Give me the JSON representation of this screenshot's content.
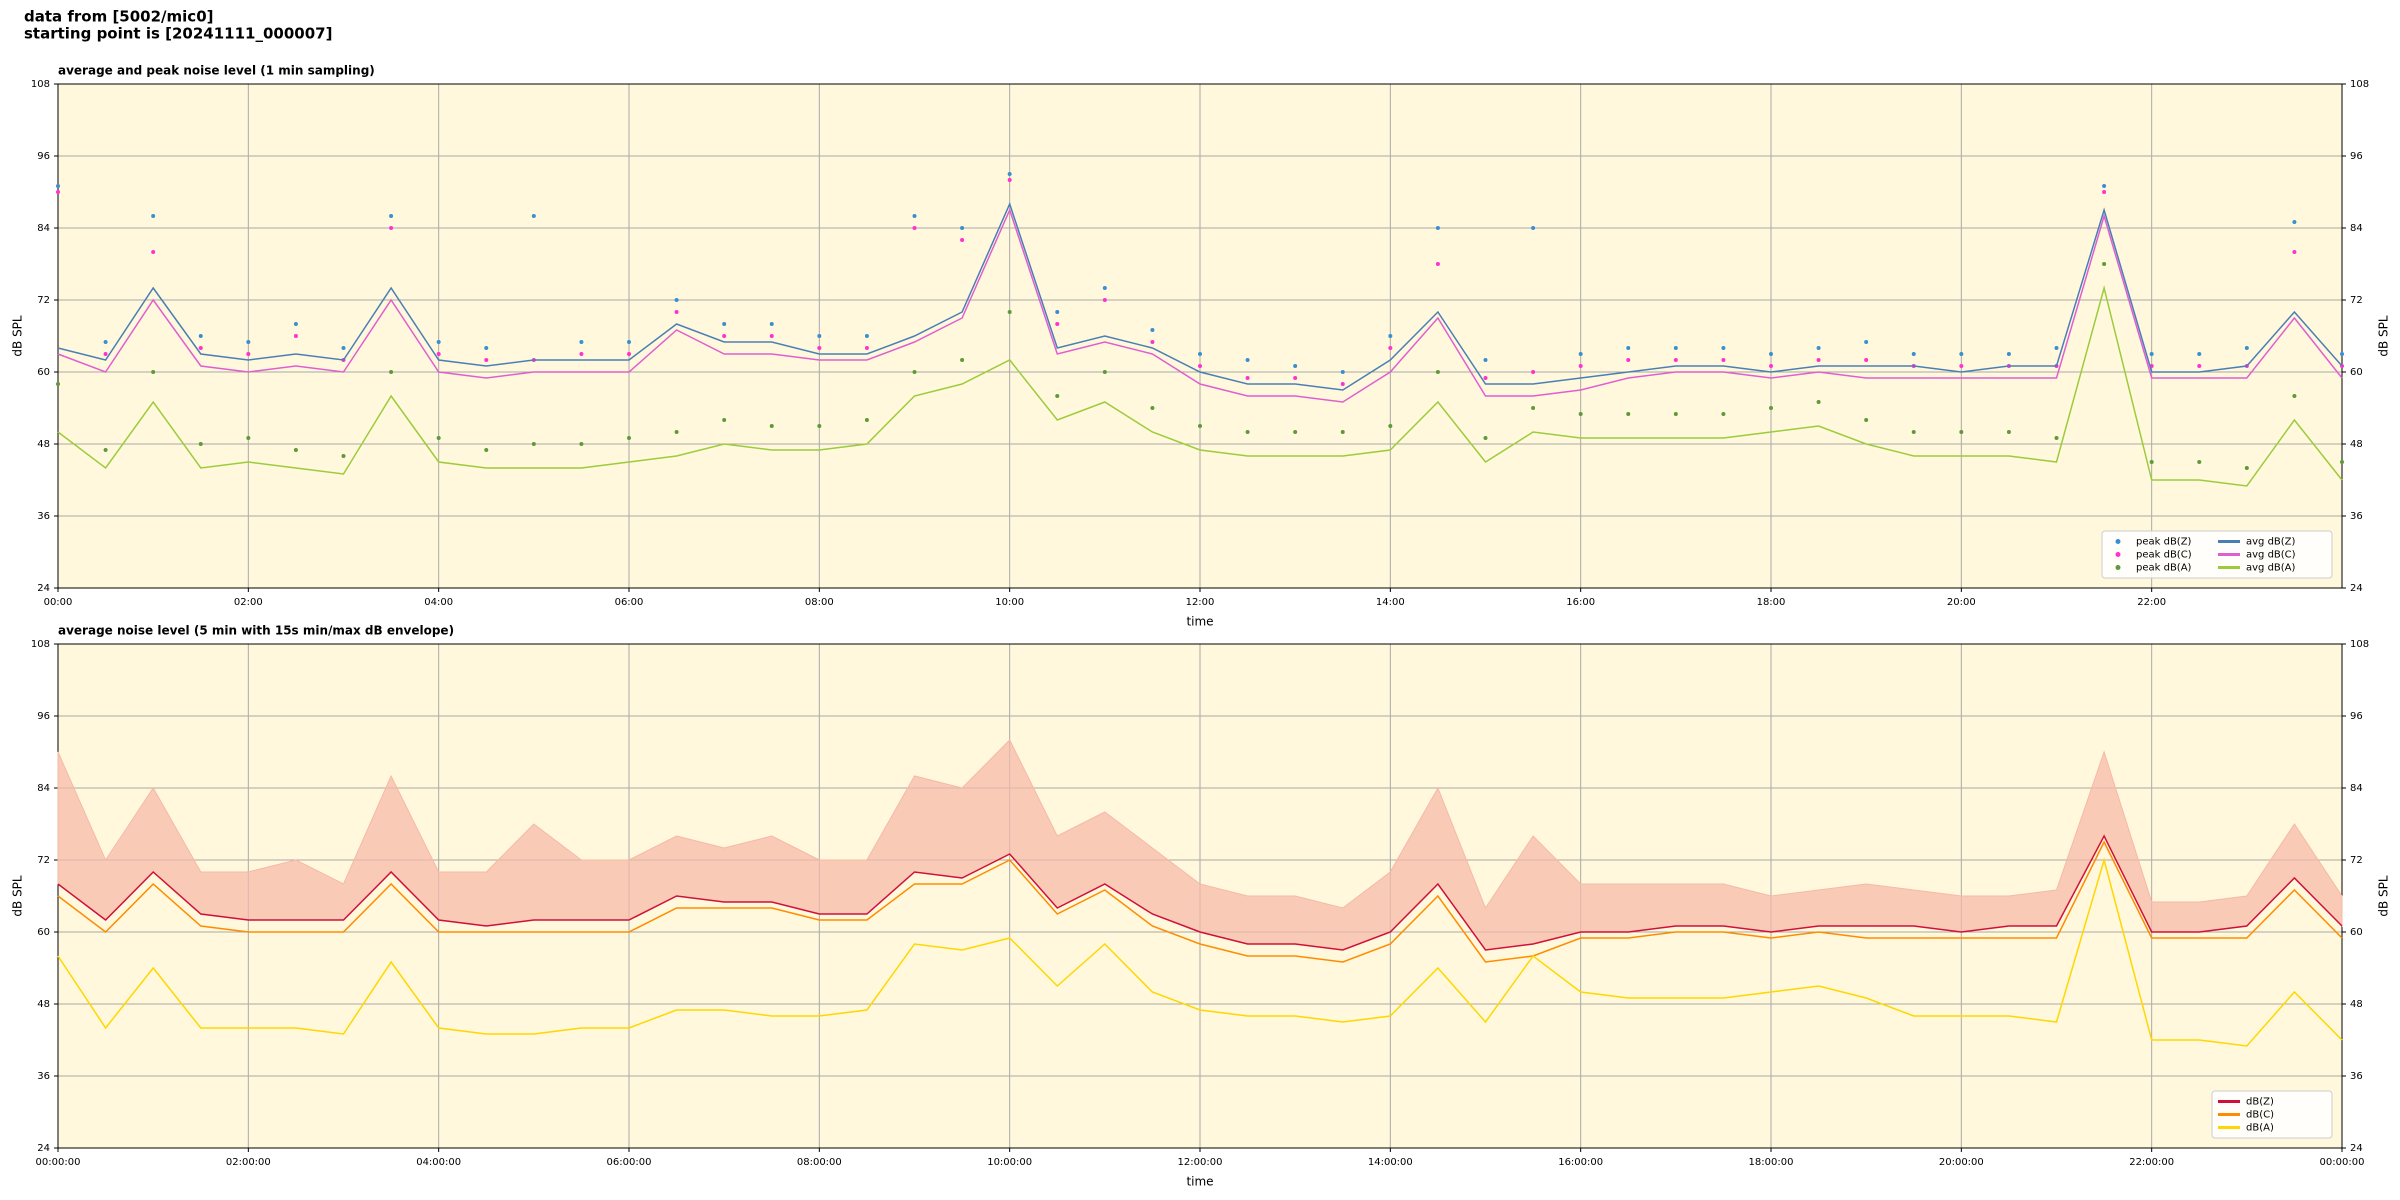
{
  "header": {
    "line1": "data from [5002/mic0]",
    "line2": "starting point is [20241111_000007]"
  },
  "chart_data": [
    {
      "type": "line",
      "title": "average and peak noise level (1 min sampling)",
      "xlabel": "time",
      "ylabel": "dB SPL",
      "x": [
        0,
        0.5,
        1,
        1.5,
        2,
        2.5,
        3,
        3.5,
        4,
        4.5,
        5,
        5.5,
        6,
        6.5,
        7,
        7.5,
        8,
        8.5,
        9,
        9.5,
        10,
        10.5,
        11,
        11.5,
        12,
        12.5,
        13,
        13.5,
        14,
        14.5,
        15,
        15.5,
        16,
        16.5,
        17,
        17.5,
        18,
        18.5,
        19,
        19.5,
        20,
        20.5,
        21,
        21.5,
        22,
        22.5,
        23,
        23.5,
        24
      ],
      "xlim": [
        0,
        24
      ],
      "ylim": [
        24,
        108
      ],
      "yticks": [
        24,
        36,
        48,
        60,
        72,
        84,
        96,
        108
      ],
      "xticks": [
        {
          "value": 0,
          "label": "00:00"
        },
        {
          "value": 2,
          "label": "02:00"
        },
        {
          "value": 4,
          "label": "04:00"
        },
        {
          "value": 6,
          "label": "06:00"
        },
        {
          "value": 8,
          "label": "08:00"
        },
        {
          "value": 10,
          "label": "10:00"
        },
        {
          "value": 12,
          "label": "12:00"
        },
        {
          "value": 14,
          "label": "14:00"
        },
        {
          "value": 16,
          "label": "16:00"
        },
        {
          "value": 18,
          "label": "18:00"
        },
        {
          "value": 20,
          "label": "20:00"
        },
        {
          "value": 22,
          "label": "22:00"
        }
      ],
      "grid": true,
      "legend": "lower right",
      "legend_columns": 2,
      "series": [
        {
          "name": "peak dB(Z)",
          "type": "scatter",
          "color": "#3a8fd0",
          "values": [
            91,
            65,
            86,
            66,
            65,
            68,
            64,
            86,
            65,
            64,
            86,
            65,
            65,
            72,
            68,
            68,
            66,
            66,
            86,
            84,
            93,
            70,
            74,
            67,
            63,
            62,
            61,
            60,
            66,
            84,
            62,
            84,
            63,
            64,
            64,
            64,
            63,
            64,
            65,
            63,
            63,
            63,
            64,
            91,
            63,
            63,
            64,
            85,
            63
          ]
        },
        {
          "name": "peak dB(C)",
          "type": "scatter",
          "color": "#ff33cc",
          "values": [
            90,
            63,
            80,
            64,
            63,
            66,
            62,
            84,
            63,
            62,
            62,
            63,
            63,
            70,
            66,
            66,
            64,
            64,
            84,
            82,
            92,
            68,
            72,
            65,
            61,
            59,
            59,
            58,
            64,
            78,
            59,
            60,
            61,
            62,
            62,
            62,
            61,
            62,
            62,
            61,
            61,
            61,
            61,
            90,
            61,
            61,
            61,
            80,
            61
          ]
        },
        {
          "name": "peak dB(A)",
          "type": "scatter",
          "color": "#5e9a3a",
          "values": [
            58,
            47,
            60,
            48,
            49,
            47,
            46,
            60,
            49,
            47,
            48,
            48,
            49,
            50,
            52,
            51,
            51,
            52,
            60,
            62,
            70,
            56,
            60,
            54,
            51,
            50,
            50,
            50,
            51,
            60,
            49,
            54,
            53,
            53,
            53,
            53,
            54,
            55,
            52,
            50,
            50,
            50,
            49,
            78,
            45,
            45,
            44,
            56,
            45
          ]
        },
        {
          "name": "avg dB(Z)",
          "type": "line",
          "color": "#4a7fb5",
          "values": [
            64,
            62,
            74,
            63,
            62,
            63,
            62,
            74,
            62,
            61,
            62,
            62,
            62,
            68,
            65,
            65,
            63,
            63,
            66,
            70,
            88,
            64,
            66,
            64,
            60,
            58,
            58,
            57,
            62,
            70,
            58,
            58,
            59,
            60,
            61,
            61,
            60,
            61,
            61,
            61,
            60,
            61,
            61,
            87,
            60,
            60,
            61,
            70,
            61
          ]
        },
        {
          "name": "avg dB(C)",
          "type": "line",
          "color": "#e05fd0",
          "values": [
            63,
            60,
            72,
            61,
            60,
            61,
            60,
            72,
            60,
            59,
            60,
            60,
            60,
            67,
            63,
            63,
            62,
            62,
            65,
            69,
            87,
            63,
            65,
            63,
            58,
            56,
            56,
            55,
            60,
            69,
            56,
            56,
            57,
            59,
            60,
            60,
            59,
            60,
            59,
            59,
            59,
            59,
            59,
            86,
            59,
            59,
            59,
            69,
            59
          ]
        },
        {
          "name": "avg dB(A)",
          "type": "line",
          "color": "#9ccc3c",
          "values": [
            50,
            44,
            55,
            44,
            45,
            44,
            43,
            56,
            45,
            44,
            44,
            44,
            45,
            46,
            48,
            47,
            47,
            48,
            56,
            58,
            62,
            52,
            55,
            50,
            47,
            46,
            46,
            46,
            47,
            55,
            45,
            50,
            49,
            49,
            49,
            49,
            50,
            51,
            48,
            46,
            46,
            46,
            45,
            74,
            42,
            42,
            41,
            52,
            42
          ]
        }
      ]
    },
    {
      "type": "line",
      "title": "average noise level (5 min with 15s min/max dB envelope)",
      "xlabel": "time",
      "ylabel": "dB SPL",
      "x": [
        0,
        0.5,
        1,
        1.5,
        2,
        2.5,
        3,
        3.5,
        4,
        4.5,
        5,
        5.5,
        6,
        6.5,
        7,
        7.5,
        8,
        8.5,
        9,
        9.5,
        10,
        10.5,
        11,
        11.5,
        12,
        12.5,
        13,
        13.5,
        14,
        14.5,
        15,
        15.5,
        16,
        16.5,
        17,
        17.5,
        18,
        18.5,
        19,
        19.5,
        20,
        20.5,
        21,
        21.5,
        22,
        22.5,
        23,
        23.5,
        24
      ],
      "xlim": [
        0,
        24
      ],
      "ylim": [
        24,
        108
      ],
      "yticks": [
        24,
        36,
        48,
        60,
        72,
        84,
        96,
        108
      ],
      "xticks": [
        {
          "value": 0,
          "label": "00:00:00"
        },
        {
          "value": 2,
          "label": "02:00:00"
        },
        {
          "value": 4,
          "label": "04:00:00"
        },
        {
          "value": 6,
          "label": "06:00:00"
        },
        {
          "value": 8,
          "label": "08:00:00"
        },
        {
          "value": 10,
          "label": "10:00:00"
        },
        {
          "value": 12,
          "label": "12:00:00"
        },
        {
          "value": 14,
          "label": "14:00:00"
        },
        {
          "value": 16,
          "label": "16:00:00"
        },
        {
          "value": 18,
          "label": "18:00:00"
        },
        {
          "value": 20,
          "label": "20:00:00"
        },
        {
          "value": 22,
          "label": "22:00:00"
        },
        {
          "value": 24,
          "label": "00:00:00"
        }
      ],
      "grid": true,
      "legend": "lower right",
      "legend_columns": 1,
      "series": [
        {
          "type": "envelope",
          "color": "#f6b8a6",
          "values": [
            90,
            72,
            84,
            70,
            70,
            72,
            68,
            86,
            70,
            70,
            78,
            72,
            72,
            76,
            74,
            76,
            72,
            72,
            86,
            84,
            92,
            76,
            80,
            74,
            68,
            66,
            66,
            64,
            70,
            84,
            64,
            76,
            68,
            68,
            68,
            68,
            66,
            67,
            68,
            67,
            66,
            66,
            67,
            90,
            65,
            65,
            66,
            78,
            66
          ]
        },
        {
          "name": "dB(Z)",
          "type": "line",
          "color": "#d0103a",
          "values": [
            68,
            62,
            70,
            63,
            62,
            62,
            62,
            70,
            62,
            61,
            62,
            62,
            62,
            66,
            65,
            65,
            63,
            63,
            70,
            69,
            73,
            64,
            68,
            63,
            60,
            58,
            58,
            57,
            60,
            68,
            57,
            58,
            60,
            60,
            61,
            61,
            60,
            61,
            61,
            61,
            60,
            61,
            61,
            76,
            60,
            60,
            61,
            69,
            61
          ]
        },
        {
          "name": "dB(C)",
          "type": "line",
          "color": "#ff8c00",
          "values": [
            66,
            60,
            68,
            61,
            60,
            60,
            60,
            68,
            60,
            60,
            60,
            60,
            60,
            64,
            64,
            64,
            62,
            62,
            68,
            68,
            72,
            63,
            67,
            61,
            58,
            56,
            56,
            55,
            58,
            66,
            55,
            56,
            59,
            59,
            60,
            60,
            59,
            60,
            59,
            59,
            59,
            59,
            59,
            75,
            59,
            59,
            59,
            67,
            59
          ]
        },
        {
          "name": "dB(A)",
          "type": "line",
          "color": "#ffd700",
          "values": [
            56,
            44,
            54,
            44,
            44,
            44,
            43,
            55,
            44,
            43,
            43,
            44,
            44,
            47,
            47,
            46,
            46,
            47,
            58,
            57,
            59,
            51,
            58,
            50,
            47,
            46,
            46,
            45,
            46,
            54,
            45,
            56,
            50,
            49,
            49,
            49,
            50,
            51,
            49,
            46,
            46,
            46,
            45,
            72,
            42,
            42,
            41,
            50,
            42
          ]
        }
      ]
    }
  ]
}
